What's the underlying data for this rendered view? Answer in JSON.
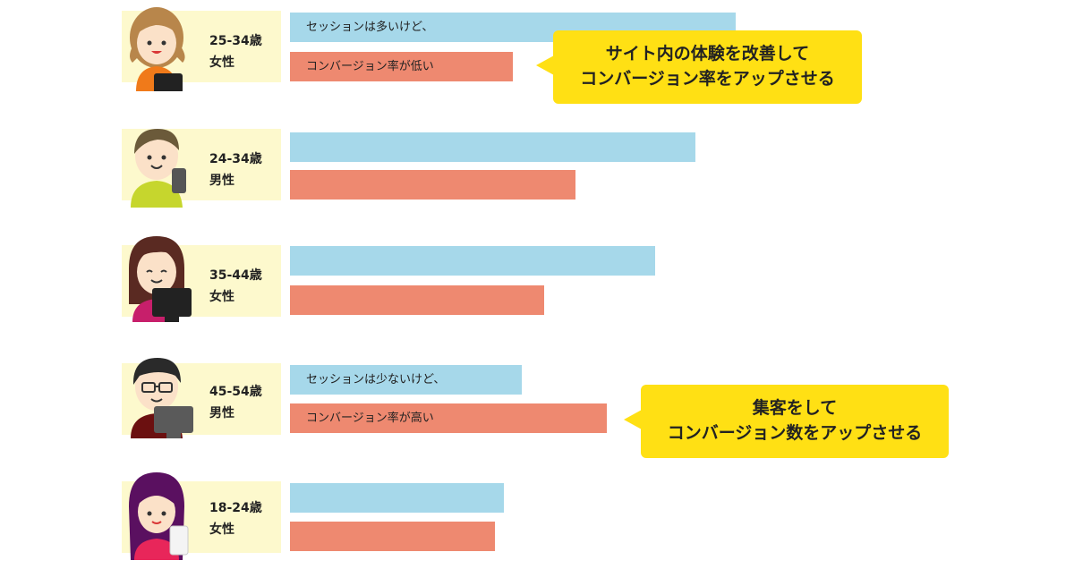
{
  "chart_data": {
    "type": "bar",
    "orientation": "horizontal",
    "categories": [
      "25-34歳 女性",
      "24-34歳 男性",
      "35-44歳 女性",
      "45-54歳 男性",
      "18-24歳 女性"
    ],
    "series": [
      {
        "values": [
          100,
          91,
          82,
          52,
          48
        ]
      },
      {
        "values": [
          50,
          64,
          57,
          71,
          46
        ]
      }
    ],
    "colors": {
      "session": "#a6d8ea",
      "conversion": "#ee8970",
      "label_bg": "#fdf9cd",
      "callout": "#ffe014"
    },
    "grid": false,
    "axes_visible": false
  },
  "segments": [
    {
      "age": "25-34歳",
      "gender": "女性",
      "avatar_icon": "woman-tablet-icon",
      "session_note": "セッションは多いけど、",
      "conversion_note": "コンバージョン率が低い"
    },
    {
      "age": "24-34歳",
      "gender": "男性",
      "avatar_icon": "man-smartphone-icon",
      "session_note": "",
      "conversion_note": ""
    },
    {
      "age": "35-44歳",
      "gender": "女性",
      "avatar_icon": "woman-monitor-icon",
      "session_note": "",
      "conversion_note": ""
    },
    {
      "age": "45-54歳",
      "gender": "男性",
      "avatar_icon": "man-glasses-monitor-icon",
      "session_note": "セッションは少ないけど、",
      "conversion_note": "コンバージョン率が高い"
    },
    {
      "age": "18-24歳",
      "gender": "女性",
      "avatar_icon": "girl-phone-icon",
      "session_note": "",
      "conversion_note": ""
    }
  ],
  "callouts": [
    {
      "line1": "サイト内の体験を改善して",
      "line2": "コンバージョン率をアップさせる"
    },
    {
      "line1": "集客をして",
      "line2": "コンバージョン数をアップさせる"
    }
  ]
}
